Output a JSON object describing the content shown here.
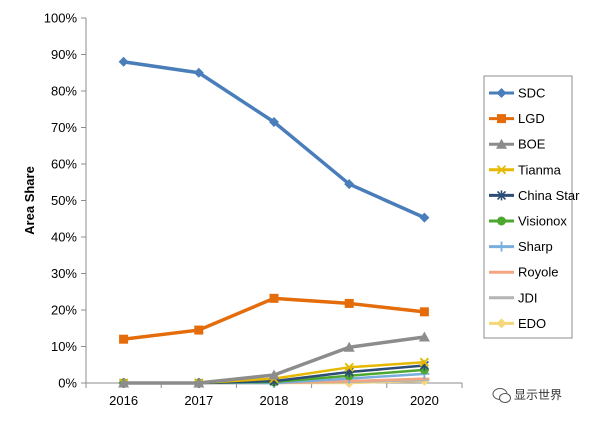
{
  "chart_data": {
    "type": "line",
    "ylabel": "Area Share",
    "xlabel": "",
    "title": "",
    "categories": [
      "2016",
      "2017",
      "2018",
      "2019",
      "2020"
    ],
    "ylim": [
      0,
      100
    ],
    "y_ticks": [
      "0%",
      "10%",
      "20%",
      "30%",
      "40%",
      "50%",
      "60%",
      "70%",
      "80%",
      "90%",
      "100%"
    ],
    "grid": false,
    "legend_position": "right",
    "series": [
      {
        "name": "SDC",
        "color": "#4a7ebb",
        "marker": "diamond",
        "values": [
          88,
          85,
          71.5,
          54.5,
          45.3
        ]
      },
      {
        "name": "LGD",
        "color": "#e46c0a",
        "marker": "square",
        "values": [
          12,
          14.5,
          23.2,
          21.8,
          19.5
        ]
      },
      {
        "name": "BOE",
        "color": "#8c8c8c",
        "marker": "triangle",
        "values": [
          0,
          0,
          2.2,
          9.8,
          12.6
        ]
      },
      {
        "name": "Tianma",
        "color": "#e6b800",
        "marker": "x",
        "values": [
          0,
          0,
          1.2,
          4.3,
          5.7
        ]
      },
      {
        "name": "China Star",
        "color": "#2c4d75",
        "marker": "star",
        "values": [
          0,
          0,
          0.5,
          3,
          4.8
        ]
      },
      {
        "name": "Visionox",
        "color": "#4ea72e",
        "marker": "circle",
        "values": [
          0,
          0,
          0.3,
          2,
          3.6
        ]
      },
      {
        "name": "Sharp",
        "color": "#7aaedc",
        "marker": "plus",
        "values": [
          0,
          0,
          0,
          1.2,
          2.5
        ]
      },
      {
        "name": "Royole",
        "color": "#f4a582",
        "marker": "dash",
        "values": [
          0,
          0,
          0,
          0.5,
          1.2
        ]
      },
      {
        "name": "JDI",
        "color": "#b4b4b4",
        "marker": "dash",
        "values": [
          0,
          0,
          0,
          0.3,
          0.8
        ]
      },
      {
        "name": "EDO",
        "color": "#f5d77a",
        "marker": "diamond",
        "values": [
          0,
          0,
          0,
          0,
          0.6
        ]
      }
    ]
  },
  "watermark": {
    "text": "显示世界",
    "icon": "wechat-icon"
  }
}
